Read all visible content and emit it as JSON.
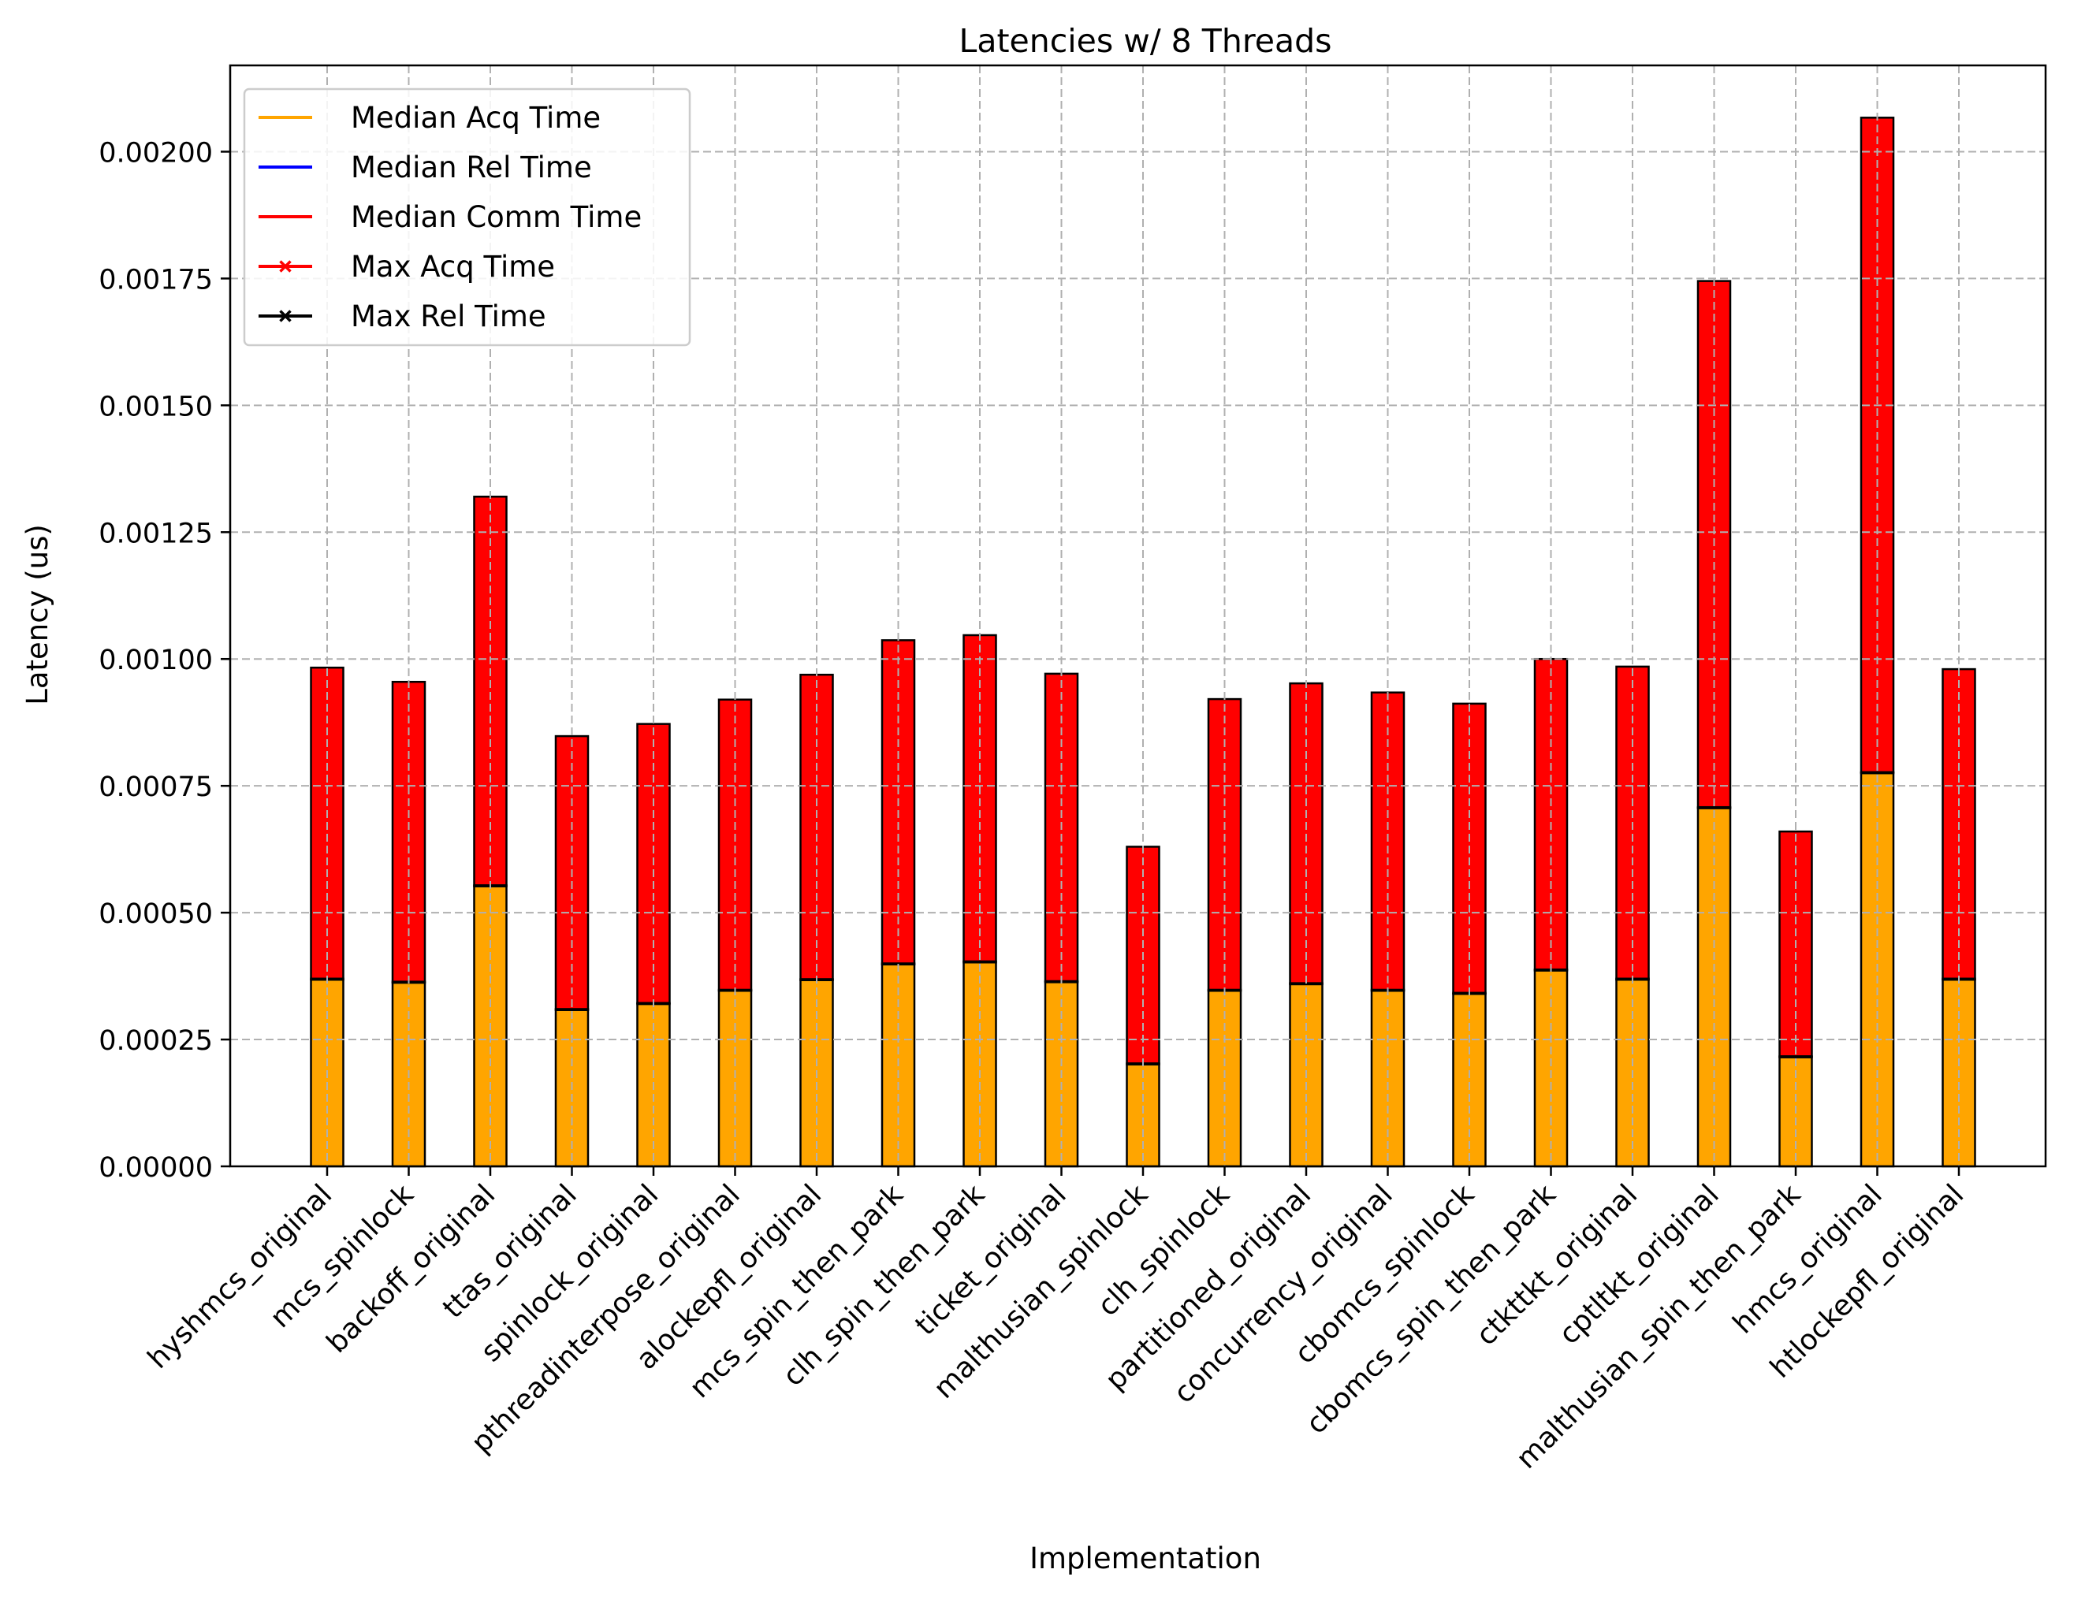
{
  "chart_data": {
    "type": "bar",
    "stacked": true,
    "title": "Latencies w/ 8 Threads",
    "xlabel": "Implementation",
    "ylabel": "Latency (us)",
    "ylim": [
      0,
      0.00217
    ],
    "yticks": [
      "0.00000",
      "0.00025",
      "0.00050",
      "0.00075",
      "0.00100",
      "0.00125",
      "0.00150",
      "0.00175",
      "0.00200"
    ],
    "grid": true,
    "legend_position": "top-left",
    "categories": [
      "hyshmcs_original",
      "mcs_spinlock",
      "backoff_original",
      "ttas_original",
      "spinlock_original",
      "pthreadinterpose_original",
      "alockepfl_original",
      "mcs_spin_then_park",
      "clh_spin_then_park",
      "ticket_original",
      "malthusian_spinlock",
      "clh_spinlock",
      "partitioned_original",
      "concurrency_original",
      "cbomcs_spinlock",
      "cbomcs_spin_then_park",
      "ctkttkt_original",
      "cptltkt_original",
      "malthusian_spin_then_park",
      "hmcs_original",
      "htlockepfl_original"
    ],
    "series": [
      {
        "name": "Median Acq Time",
        "color": "#ffa500",
        "values": [
          0.000368,
          0.000362,
          0.000552,
          0.000308,
          0.00032,
          0.000346,
          0.000367,
          0.000398,
          0.000402,
          0.000363,
          0.000201,
          0.000346,
          0.000359,
          0.000346,
          0.00034,
          0.000386,
          0.000368,
          0.000706,
          0.000215,
          0.000775,
          0.000368
        ]
      },
      {
        "name": "Median Rel Time",
        "color": "#0000ff",
        "values": [
          2e-06,
          2e-06,
          2e-06,
          2e-06,
          2e-06,
          2e-06,
          2e-06,
          2e-06,
          2e-06,
          2e-06,
          2e-06,
          2e-06,
          2e-06,
          2e-06,
          2e-06,
          2e-06,
          2e-06,
          2e-06,
          2e-06,
          2e-06,
          2e-06
        ]
      },
      {
        "name": "Median Comm Time",
        "color": "#ff0000",
        "values": [
          0.000613,
          0.000591,
          0.000766,
          0.000538,
          0.00055,
          0.000572,
          0.0006,
          0.000637,
          0.000643,
          0.000606,
          0.000427,
          0.000573,
          0.000591,
          0.000586,
          0.00057,
          0.000612,
          0.000615,
          0.001037,
          0.000443,
          0.00129,
          0.00061
        ]
      }
    ],
    "legend": [
      {
        "name": "Median Acq Time",
        "color": "#ffa500",
        "marker": "none"
      },
      {
        "name": "Median Rel Time",
        "color": "#0000ff",
        "marker": "none"
      },
      {
        "name": "Median Comm Time",
        "color": "#ff0000",
        "marker": "none"
      },
      {
        "name": "Max Acq Time",
        "color": "#ff0000",
        "marker": "x"
      },
      {
        "name": "Max Rel Time",
        "color": "#000000",
        "marker": "x"
      }
    ]
  }
}
